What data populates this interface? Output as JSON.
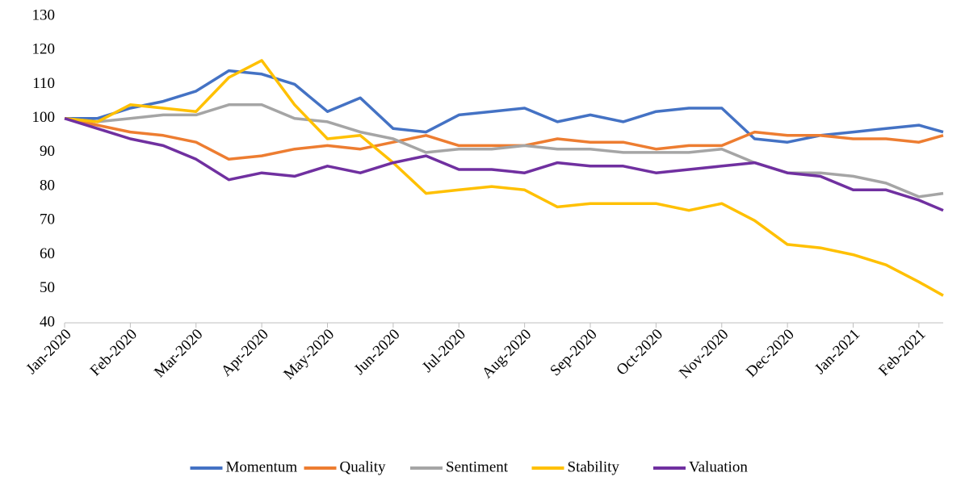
{
  "chart_data": {
    "type": "line",
    "x": [
      0,
      0.5,
      1,
      1.5,
      2,
      2.5,
      3,
      3.5,
      4,
      4.5,
      5,
      5.5,
      6,
      6.5,
      7,
      7.5,
      8,
      8.5,
      9,
      9.5,
      10,
      10.5,
      11,
      11.5,
      12,
      12.5,
      13,
      13.37
    ],
    "xlim": [
      0,
      13.37
    ],
    "xticks": [
      {
        "value": 0,
        "label": "Jan-2020"
      },
      {
        "value": 1,
        "label": "Feb-2020"
      },
      {
        "value": 2,
        "label": "Mar-2020"
      },
      {
        "value": 3,
        "label": "Apr-2020"
      },
      {
        "value": 4,
        "label": "May-2020"
      },
      {
        "value": 5,
        "label": "Jun-2020"
      },
      {
        "value": 6,
        "label": "Jul-2020"
      },
      {
        "value": 7,
        "label": "Aug-2020"
      },
      {
        "value": 8,
        "label": "Sep-2020"
      },
      {
        "value": 9,
        "label": "Oct-2020"
      },
      {
        "value": 10,
        "label": "Nov-2020"
      },
      {
        "value": 11,
        "label": "Dec-2020"
      },
      {
        "value": 12,
        "label": "Jan-2021"
      },
      {
        "value": 13,
        "label": "Feb-2021"
      }
    ],
    "ylim": [
      40,
      130
    ],
    "yticks": [
      40,
      50,
      60,
      70,
      80,
      90,
      100,
      110,
      120,
      130
    ],
    "grid": false,
    "legend": "bottom",
    "series": [
      {
        "name": "Momentum",
        "color": "#4472c4",
        "values": [
          100,
          100,
          103,
          105,
          108,
          114,
          113,
          110,
          102,
          106,
          97,
          96,
          101,
          102,
          103,
          99,
          101,
          99,
          102,
          103,
          103,
          94,
          93,
          95,
          96,
          97,
          98,
          96
        ]
      },
      {
        "name": "Quality",
        "color": "#ed7d31",
        "values": [
          100,
          98,
          96,
          95,
          93,
          88,
          89,
          91,
          92,
          91,
          93,
          95,
          92,
          92,
          92,
          94,
          93,
          93,
          91,
          92,
          92,
          96,
          95,
          95,
          94,
          94,
          93,
          95
        ]
      },
      {
        "name": "Sentiment",
        "color": "#a5a5a5",
        "values": [
          100,
          99,
          100,
          101,
          101,
          104,
          104,
          100,
          99,
          96,
          94,
          90,
          91,
          91,
          92,
          91,
          91,
          90,
          90,
          90,
          91,
          87,
          84,
          84,
          83,
          81,
          77,
          78
        ]
      },
      {
        "name": "Stability",
        "color": "#ffc000",
        "values": [
          100,
          99,
          104,
          103,
          102,
          112,
          117,
          104,
          94,
          95,
          87,
          78,
          79,
          80,
          79,
          74,
          75,
          75,
          75,
          73,
          75,
          70,
          63,
          62,
          60,
          57,
          52,
          48
        ]
      },
      {
        "name": "Valuation",
        "color": "#7030a0",
        "values": [
          100,
          97,
          94,
          92,
          88,
          82,
          84,
          83,
          86,
          84,
          87,
          89,
          85,
          85,
          84,
          87,
          86,
          86,
          84,
          85,
          86,
          87,
          84,
          83,
          79,
          79,
          76,
          73
        ]
      }
    ]
  }
}
